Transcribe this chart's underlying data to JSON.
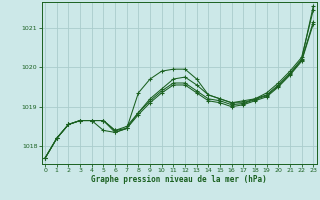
{
  "xlabel": "Graphe pression niveau de la mer (hPa)",
  "ylabel": "",
  "background_color": "#cce8e8",
  "grid_color": "#aacccc",
  "line_color": "#1a6020",
  "xlim": [
    -0.3,
    23.3
  ],
  "ylim": [
    1017.55,
    1021.65
  ],
  "yticks": [
    1018,
    1019,
    1020,
    1021
  ],
  "xticks": [
    0,
    1,
    2,
    3,
    4,
    5,
    6,
    7,
    8,
    9,
    10,
    11,
    12,
    13,
    14,
    15,
    16,
    17,
    18,
    19,
    20,
    21,
    22,
    23
  ],
  "series": [
    [
      1017.7,
      1018.2,
      1018.55,
      1018.65,
      1018.65,
      1018.65,
      1018.4,
      1018.5,
      1018.85,
      1019.2,
      1019.45,
      1019.7,
      1019.75,
      1019.55,
      1019.3,
      1019.2,
      1019.1,
      1019.1,
      1019.2,
      1019.3,
      1019.55,
      1019.85,
      1020.2,
      1021.55
    ],
    [
      1017.7,
      1018.2,
      1018.55,
      1018.65,
      1018.65,
      1018.65,
      1018.35,
      1018.45,
      1018.8,
      1019.1,
      1019.35,
      1019.55,
      1019.55,
      1019.35,
      1019.15,
      1019.1,
      1019.0,
      1019.05,
      1019.15,
      1019.25,
      1019.5,
      1019.8,
      1020.15,
      1021.1
    ],
    [
      1017.7,
      1018.2,
      1018.55,
      1018.65,
      1018.65,
      1018.65,
      1018.4,
      1018.45,
      1019.35,
      1019.7,
      1019.9,
      1019.95,
      1019.95,
      1019.7,
      1019.3,
      1019.2,
      1019.1,
      1019.15,
      1019.2,
      1019.35,
      1019.6,
      1019.9,
      1020.25,
      1021.45
    ],
    [
      1017.7,
      1018.2,
      1018.55,
      1018.65,
      1018.65,
      1018.4,
      1018.35,
      1018.45,
      1018.85,
      1019.15,
      1019.4,
      1019.6,
      1019.6,
      1019.4,
      1019.2,
      1019.15,
      1019.05,
      1019.08,
      1019.18,
      1019.28,
      1019.52,
      1019.82,
      1020.18,
      1021.15
    ]
  ]
}
